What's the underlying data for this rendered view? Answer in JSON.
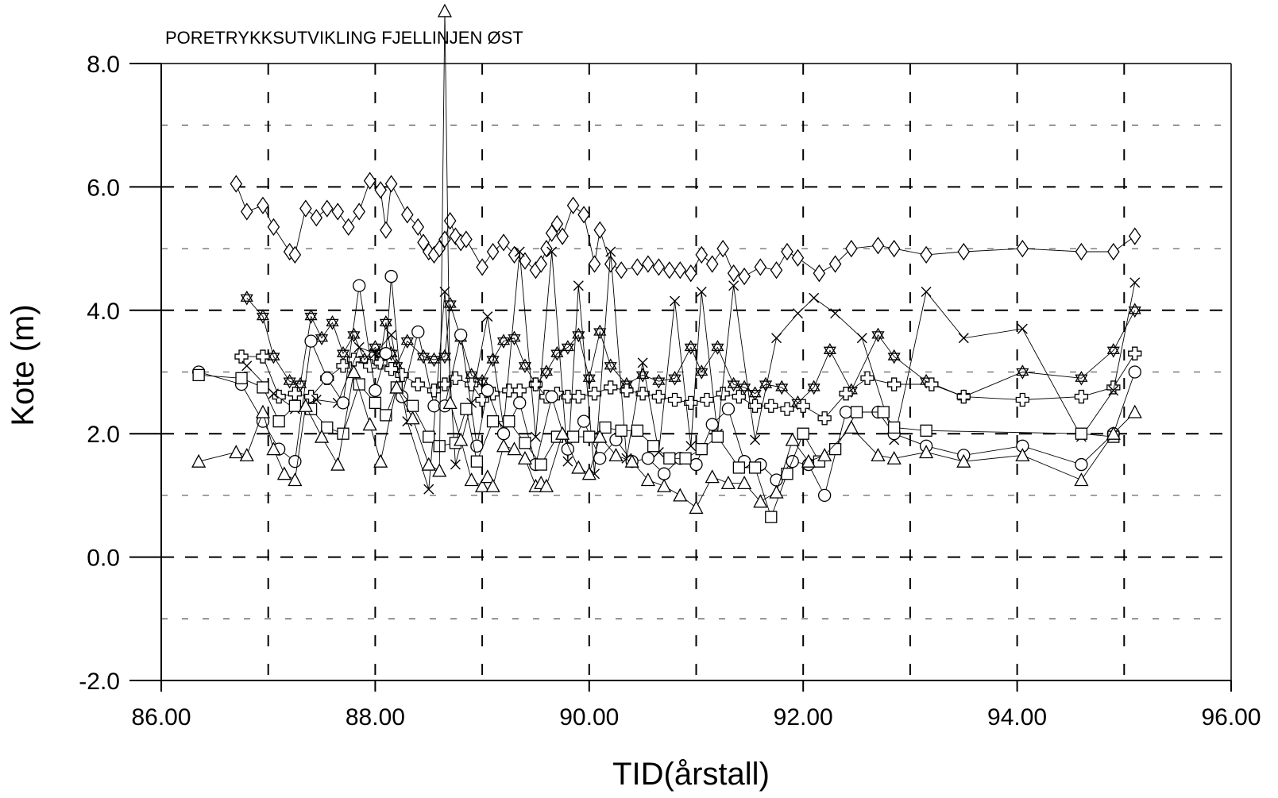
{
  "chart_data": {
    "type": "line",
    "title": "PORETRYKKSUTVIKLING FJELLINJEN ØST",
    "xlabel": "TID(årstall)",
    "ylabel": "Kote (m)",
    "xlim": [
      86.0,
      96.0
    ],
    "ylim": [
      -2.0,
      8.0
    ],
    "xticks": [
      86.0,
      88.0,
      90.0,
      92.0,
      94.0,
      96.0
    ],
    "xtick_labels": [
      "86.00",
      "88.00",
      "90.00",
      "92.00",
      "94.00",
      "96.00"
    ],
    "yticks": [
      -2.0,
      0.0,
      2.0,
      4.0,
      6.0,
      8.0
    ],
    "ytick_labels": [
      "-2.0",
      "0.0",
      "2.0",
      "4.0",
      "6.0",
      "8.0"
    ],
    "grid": "dashed, major and minor",
    "legend": "none",
    "series": [
      {
        "marker": "diamond",
        "x": [
          86.7,
          86.8,
          86.95,
          87.05,
          87.2,
          87.25,
          87.35,
          87.45,
          87.55,
          87.65,
          87.75,
          87.85,
          87.95,
          88.05,
          88.1,
          88.15,
          88.3,
          88.4,
          88.45,
          88.5,
          88.55,
          88.6,
          88.65,
          88.7,
          88.75,
          88.8,
          88.85,
          89.0,
          89.1,
          89.2,
          89.3,
          89.4,
          89.5,
          89.55,
          89.6,
          89.65,
          89.7,
          89.75,
          89.85,
          89.95,
          90.05,
          90.1,
          90.2,
          90.3,
          90.45,
          90.55,
          90.65,
          90.75,
          90.85,
          90.95,
          91.05,
          91.15,
          91.25,
          91.35,
          91.45,
          91.6,
          91.75,
          91.85,
          91.95,
          92.15,
          92.3,
          92.45,
          92.7,
          92.85,
          93.15,
          93.5,
          94.05,
          94.6,
          94.9,
          95.1
        ],
        "y": [
          6.05,
          5.6,
          5.7,
          5.35,
          4.95,
          4.9,
          5.65,
          5.5,
          5.65,
          5.6,
          5.35,
          5.6,
          6.1,
          5.95,
          5.3,
          6.05,
          5.55,
          5.35,
          5.1,
          4.95,
          4.9,
          5.0,
          5.15,
          5.45,
          5.2,
          5.1,
          5.15,
          4.7,
          4.95,
          5.1,
          4.9,
          4.8,
          4.65,
          4.75,
          5.0,
          5.25,
          5.4,
          5.2,
          5.7,
          5.55,
          4.75,
          5.3,
          4.75,
          4.65,
          4.7,
          4.75,
          4.7,
          4.65,
          4.65,
          4.6,
          4.9,
          4.75,
          5.0,
          4.6,
          4.55,
          4.7,
          4.65,
          4.95,
          4.85,
          4.6,
          4.75,
          5.0,
          5.05,
          5.0,
          4.9,
          4.95,
          5.0,
          4.95,
          4.95,
          5.2
        ]
      },
      {
        "marker": "star-of-david",
        "x": [
          86.8,
          86.95,
          87.05,
          87.2,
          87.3,
          87.4,
          87.5,
          87.6,
          87.7,
          87.8,
          87.9,
          88.0,
          88.05,
          88.1,
          88.15,
          88.2,
          88.3,
          88.45,
          88.55,
          88.65,
          88.7,
          88.8,
          88.9,
          89.0,
          89.1,
          89.2,
          89.3,
          89.4,
          89.5,
          89.6,
          89.7,
          89.8,
          89.9,
          90.0,
          90.1,
          90.2,
          90.35,
          90.5,
          90.65,
          90.8,
          90.95,
          91.05,
          91.2,
          91.35,
          91.45,
          91.55,
          91.65,
          91.8,
          91.95,
          92.1,
          92.25,
          92.45,
          92.7,
          92.85,
          93.15,
          93.5,
          94.05,
          94.6,
          94.9,
          95.1
        ],
        "y": [
          4.2,
          3.9,
          3.25,
          2.85,
          2.8,
          3.9,
          3.55,
          3.8,
          3.3,
          3.6,
          3.2,
          3.4,
          3.25,
          3.8,
          3.3,
          3.1,
          3.5,
          3.25,
          3.2,
          3.25,
          4.1,
          3.55,
          2.95,
          2.85,
          3.2,
          3.5,
          3.55,
          3.1,
          2.8,
          3.0,
          3.3,
          3.4,
          3.6,
          2.9,
          3.65,
          3.1,
          2.8,
          2.95,
          2.85,
          2.9,
          3.4,
          3.0,
          3.4,
          2.8,
          2.75,
          2.65,
          2.8,
          2.75,
          2.5,
          2.75,
          3.35,
          2.7,
          3.6,
          3.25,
          2.85,
          2.6,
          3.0,
          2.9,
          3.35,
          4.0
        ]
      },
      {
        "marker": "cross",
        "x": [
          86.75,
          86.95,
          87.1,
          87.25,
          87.4,
          87.55,
          87.7,
          87.8,
          87.95,
          88.05,
          88.15,
          88.25,
          88.4,
          88.55,
          88.65,
          88.75,
          88.9,
          89.0,
          89.1,
          89.25,
          89.35,
          89.5,
          89.6,
          89.7,
          89.8,
          89.9,
          90.05,
          90.2,
          90.35,
          90.5,
          90.65,
          90.8,
          90.95,
          91.1,
          91.25,
          91.4,
          91.55,
          91.7,
          91.85,
          92.0,
          92.2,
          92.4,
          92.6,
          92.85,
          93.2,
          93.5,
          94.05,
          94.6,
          94.9,
          95.1
        ],
        "y": [
          3.25,
          3.25,
          2.6,
          2.65,
          2.6,
          2.9,
          3.1,
          3.2,
          3.1,
          3.15,
          3.05,
          2.95,
          2.8,
          2.7,
          2.8,
          2.9,
          2.8,
          2.55,
          2.65,
          2.7,
          2.7,
          2.8,
          2.6,
          2.65,
          2.6,
          2.6,
          2.65,
          2.75,
          2.7,
          2.65,
          2.6,
          2.55,
          2.5,
          2.55,
          2.65,
          2.6,
          2.45,
          2.45,
          2.4,
          2.45,
          2.25,
          2.65,
          2.9,
          2.8,
          2.8,
          2.6,
          2.55,
          2.6,
          2.75,
          3.3
        ]
      },
      {
        "marker": "x",
        "x": [
          86.8,
          87.05,
          87.25,
          87.45,
          87.65,
          87.85,
          88.0,
          88.15,
          88.3,
          88.5,
          88.65,
          88.75,
          88.9,
          89.05,
          89.2,
          89.35,
          89.5,
          89.65,
          89.8,
          89.9,
          90.05,
          90.2,
          90.35,
          90.5,
          90.65,
          90.8,
          90.95,
          91.05,
          91.2,
          91.35,
          91.55,
          91.75,
          91.95,
          92.1,
          92.3,
          92.55,
          92.85,
          93.15,
          93.5,
          94.05,
          94.6,
          94.9,
          95.1
        ],
        "y": [
          3.1,
          2.65,
          2.4,
          2.55,
          2.5,
          3.4,
          3.3,
          3.6,
          2.2,
          1.1,
          4.3,
          1.5,
          2.5,
          3.9,
          2.1,
          4.95,
          1.95,
          4.95,
          1.55,
          4.4,
          1.35,
          4.95,
          1.6,
          3.15,
          1.7,
          4.15,
          1.8,
          4.3,
          2.0,
          4.4,
          1.9,
          3.55,
          3.95,
          4.2,
          3.95,
          3.55,
          1.9,
          4.3,
          3.55,
          3.7,
          1.95,
          2.7,
          4.45
        ]
      },
      {
        "marker": "circle",
        "x": [
          86.35,
          86.75,
          86.95,
          87.1,
          87.25,
          87.4,
          87.55,
          87.7,
          87.85,
          88.0,
          88.1,
          88.15,
          88.25,
          88.4,
          88.55,
          88.65,
          88.8,
          88.95,
          89.05,
          89.2,
          89.35,
          89.5,
          89.65,
          89.8,
          89.95,
          90.1,
          90.25,
          90.4,
          90.55,
          90.7,
          90.85,
          91.0,
          91.15,
          91.3,
          91.45,
          91.6,
          91.75,
          91.9,
          92.05,
          92.2,
          92.4,
          92.7,
          92.85,
          93.15,
          93.5,
          94.05,
          94.6,
          94.9,
          95.1
        ],
        "y": [
          3.0,
          2.8,
          2.2,
          1.75,
          1.55,
          3.5,
          2.9,
          2.5,
          4.4,
          2.7,
          3.3,
          4.55,
          2.6,
          3.65,
          2.45,
          2.45,
          3.6,
          1.8,
          2.7,
          2.0,
          2.5,
          1.5,
          2.6,
          1.75,
          2.2,
          1.6,
          1.9,
          1.55,
          1.6,
          1.35,
          1.6,
          1.5,
          2.15,
          2.4,
          1.55,
          1.5,
          1.25,
          1.55,
          1.5,
          1.0,
          2.35,
          2.35,
          2.0,
          1.8,
          1.65,
          1.8,
          1.5,
          2.0,
          3.0
        ]
      },
      {
        "marker": "square",
        "x": [
          86.35,
          86.75,
          86.95,
          87.1,
          87.25,
          87.4,
          87.55,
          87.7,
          87.85,
          88.0,
          88.1,
          88.2,
          88.35,
          88.5,
          88.6,
          88.75,
          88.85,
          88.95,
          89.1,
          89.25,
          89.4,
          89.55,
          89.7,
          89.85,
          90.0,
          90.15,
          90.3,
          90.45,
          90.6,
          90.75,
          90.9,
          91.05,
          91.2,
          91.4,
          91.55,
          91.7,
          91.85,
          92.0,
          92.15,
          92.3,
          92.5,
          92.75,
          92.85,
          93.15,
          94.6,
          94.9
        ],
        "y": [
          2.95,
          2.9,
          2.75,
          2.2,
          2.45,
          2.4,
          2.1,
          2.0,
          2.8,
          2.5,
          2.3,
          2.75,
          2.45,
          1.95,
          1.8,
          1.85,
          2.4,
          1.55,
          2.2,
          2.2,
          1.85,
          1.5,
          1.95,
          1.95,
          1.95,
          2.1,
          2.05,
          2.05,
          1.8,
          1.6,
          1.6,
          1.75,
          1.95,
          1.45,
          1.45,
          0.65,
          1.35,
          2.0,
          1.55,
          1.75,
          2.35,
          2.35,
          2.1,
          2.05,
          2.0,
          1.95
        ]
      },
      {
        "marker": "triangle",
        "x": [
          86.35,
          86.7,
          86.8,
          86.95,
          87.05,
          87.15,
          87.25,
          87.35,
          87.5,
          87.65,
          87.8,
          87.95,
          88.05,
          88.2,
          88.35,
          88.5,
          88.6,
          88.65,
          88.7,
          88.8,
          88.9,
          89.0,
          89.05,
          89.1,
          89.2,
          89.3,
          89.4,
          89.5,
          89.55,
          89.6,
          89.75,
          89.9,
          90.0,
          90.1,
          90.25,
          90.4,
          90.55,
          90.7,
          90.85,
          91.0,
          91.15,
          91.3,
          91.45,
          91.6,
          91.75,
          91.9,
          92.05,
          92.2,
          92.45,
          92.7,
          92.85,
          93.15,
          93.5,
          94.05,
          94.6,
          94.9,
          95.1
        ],
        "y": [
          1.55,
          1.7,
          1.65,
          2.35,
          1.75,
          1.35,
          1.25,
          2.45,
          1.95,
          1.5,
          3.0,
          2.15,
          1.55,
          2.75,
          2.25,
          1.5,
          1.4,
          8.85,
          2.5,
          1.9,
          1.25,
          1.15,
          1.3,
          1.15,
          1.8,
          1.75,
          1.6,
          1.15,
          1.2,
          1.15,
          2.0,
          1.45,
          1.35,
          1.95,
          1.65,
          1.55,
          1.25,
          1.15,
          1.0,
          0.8,
          1.3,
          1.2,
          1.2,
          0.9,
          1.05,
          1.9,
          1.55,
          1.65,
          2.1,
          1.65,
          1.6,
          1.7,
          1.55,
          1.65,
          1.25,
          2.0,
          2.35
        ]
      }
    ]
  }
}
